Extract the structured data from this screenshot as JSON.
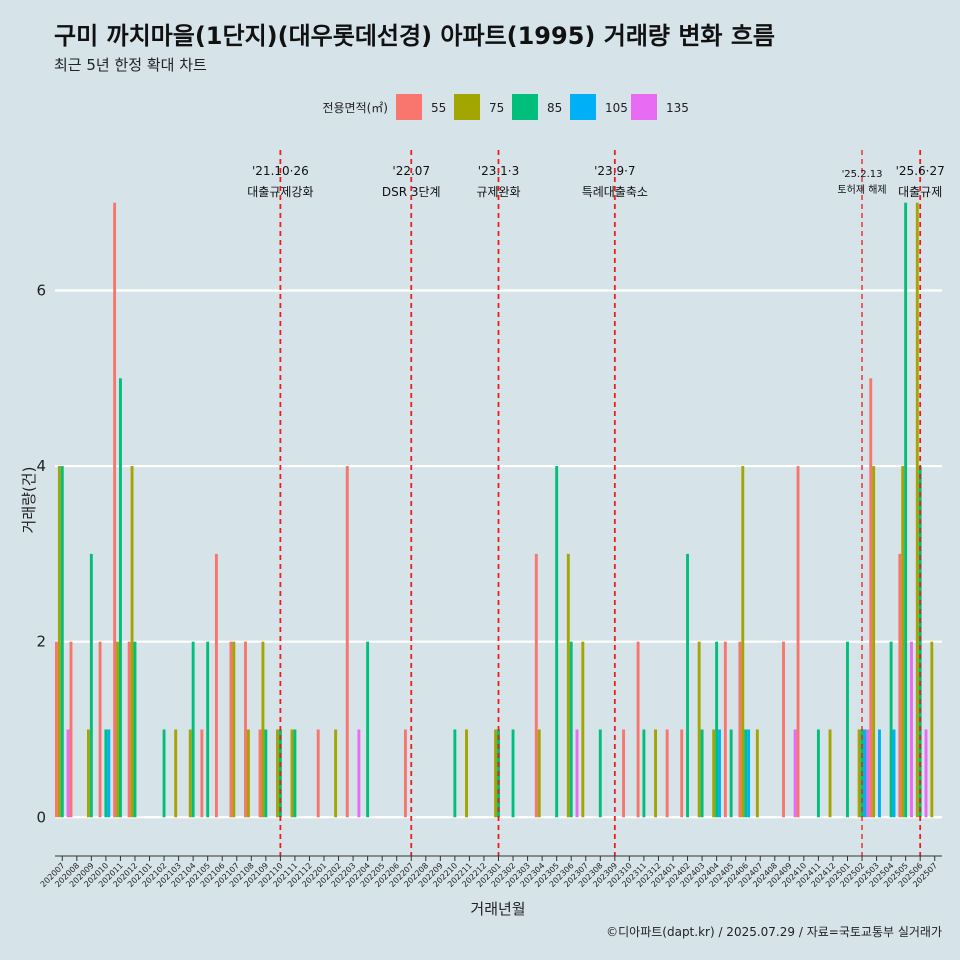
{
  "chart_data": {
    "type": "bar",
    "title": "구미 까치마을(1단지)(대우롯데선경) 아파트(1995) 거래량 변화 흐름",
    "subtitle": "최근 5년 한정 확대 차트",
    "xlabel": "거래년월",
    "ylabel": "거래량(건)",
    "ylim": [
      -0.35,
      7.6
    ],
    "yticks": [
      0,
      2,
      4,
      6
    ],
    "grid": true,
    "legend": {
      "title": "전용면적(㎡)",
      "placement": "top",
      "entries": [
        {
          "name": "55",
          "color": "#f8766d"
        },
        {
          "name": "75",
          "color": "#a3a500"
        },
        {
          "name": "85",
          "color": "#00bf7d"
        },
        {
          "name": "105",
          "color": "#00b0f6"
        },
        {
          "name": "135",
          "color": "#e76bf3"
        }
      ]
    },
    "categories": [
      "202007",
      "202008",
      "202009",
      "202010",
      "202011",
      "202012",
      "202101",
      "202102",
      "202103",
      "202104",
      "202105",
      "202106",
      "202107",
      "202108",
      "202109",
      "202110",
      "202111",
      "202112",
      "202201",
      "202202",
      "202203",
      "202204",
      "202205",
      "202206",
      "202207",
      "202208",
      "202209",
      "202210",
      "202211",
      "202212",
      "202301",
      "202302",
      "202303",
      "202304",
      "202305",
      "202306",
      "202307",
      "202308",
      "202309",
      "202310",
      "202311",
      "202312",
      "202401",
      "202402",
      "202403",
      "202404",
      "202405",
      "202406",
      "202407",
      "202408",
      "202409",
      "202410",
      "202411",
      "202412",
      "202501",
      "202502",
      "202503",
      "202504",
      "202505",
      "202506",
      "202507"
    ],
    "series": [
      {
        "name": "55",
        "color": "#f8766d",
        "values": [
          2,
          2,
          0,
          2,
          7,
          2,
          0,
          0,
          0,
          0,
          1,
          3,
          2,
          2,
          1,
          0,
          0,
          0,
          1,
          0,
          4,
          0,
          0,
          0,
          1,
          0,
          0,
          0,
          0,
          0,
          0,
          0,
          0,
          3,
          0,
          0,
          0,
          0,
          0,
          1,
          2,
          0,
          1,
          1,
          0,
          0,
          2,
          2,
          0,
          0,
          2,
          4,
          0,
          0,
          0,
          0,
          5,
          0,
          3,
          0,
          0
        ]
      },
      {
        "name": "75",
        "color": "#a3a500",
        "values": [
          4,
          0,
          1,
          0,
          2,
          4,
          0,
          0,
          1,
          1,
          0,
          0,
          2,
          1,
          2,
          1,
          1,
          0,
          0,
          1,
          0,
          0,
          0,
          0,
          0,
          0,
          0,
          0,
          1,
          0,
          1,
          0,
          0,
          1,
          0,
          3,
          2,
          0,
          0,
          0,
          0,
          1,
          0,
          0,
          2,
          1,
          0,
          4,
          1,
          0,
          0,
          0,
          0,
          1,
          0,
          1,
          4,
          0,
          4,
          7,
          2
        ]
      },
      {
        "name": "85",
        "color": "#00bf7d",
        "values": [
          4,
          0,
          3,
          1,
          5,
          2,
          0,
          1,
          0,
          2,
          2,
          0,
          0,
          0,
          1,
          1,
          1,
          0,
          0,
          0,
          0,
          2,
          0,
          0,
          0,
          0,
          0,
          1,
          0,
          0,
          1,
          1,
          0,
          0,
          4,
          2,
          0,
          1,
          0,
          0,
          1,
          0,
          0,
          3,
          1,
          2,
          1,
          1,
          0,
          0,
          0,
          0,
          1,
          0,
          2,
          1,
          0,
          2,
          7,
          4,
          0
        ]
      },
      {
        "name": "105",
        "color": "#00b0f6",
        "values": [
          0,
          0,
          0,
          1,
          0,
          0,
          0,
          0,
          0,
          0,
          0,
          0,
          0,
          0,
          0,
          0,
          0,
          0,
          0,
          0,
          0,
          0,
          0,
          0,
          0,
          0,
          0,
          0,
          0,
          0,
          0,
          0,
          0,
          0,
          0,
          0,
          0,
          0,
          0,
          0,
          0,
          0,
          0,
          0,
          0,
          1,
          0,
          1,
          0,
          0,
          0,
          0,
          0,
          0,
          0,
          1,
          1,
          1,
          0,
          0,
          0
        ]
      },
      {
        "name": "135",
        "color": "#e76bf3",
        "values": [
          1,
          0,
          0,
          0,
          0,
          0,
          0,
          0,
          0,
          0,
          0,
          0,
          0,
          0,
          0,
          0,
          0,
          0,
          0,
          0,
          1,
          0,
          0,
          0,
          0,
          0,
          0,
          0,
          0,
          0,
          0,
          0,
          0,
          0,
          0,
          1,
          0,
          0,
          0,
          0,
          0,
          0,
          0,
          0,
          0,
          0,
          0,
          0,
          0,
          0,
          1,
          0,
          0,
          0,
          0,
          1,
          0,
          0,
          2,
          1,
          0
        ]
      }
    ],
    "events": [
      {
        "date": "'21.10·26",
        "label": "대출규제강화",
        "month": "202110",
        "small": false
      },
      {
        "date": "'22.07",
        "label": "DSR 3단계",
        "month": "202207",
        "small": false
      },
      {
        "date": "'23.1·3",
        "label": "규제완화",
        "month": "202301",
        "small": false
      },
      {
        "date": "'23.9·7",
        "label": "특례대출축소",
        "month": "202309",
        "small": false
      },
      {
        "date": "'25.2.13",
        "label": "토허제 해제",
        "month": "202502",
        "small": true
      },
      {
        "date": "'25.6·27",
        "label": "대출규제",
        "month": "202506",
        "small": false
      }
    ],
    "caption": "©디아파트(dapt.kr) / 2025.07.29 / 자료=국토교통부 실거래가"
  }
}
